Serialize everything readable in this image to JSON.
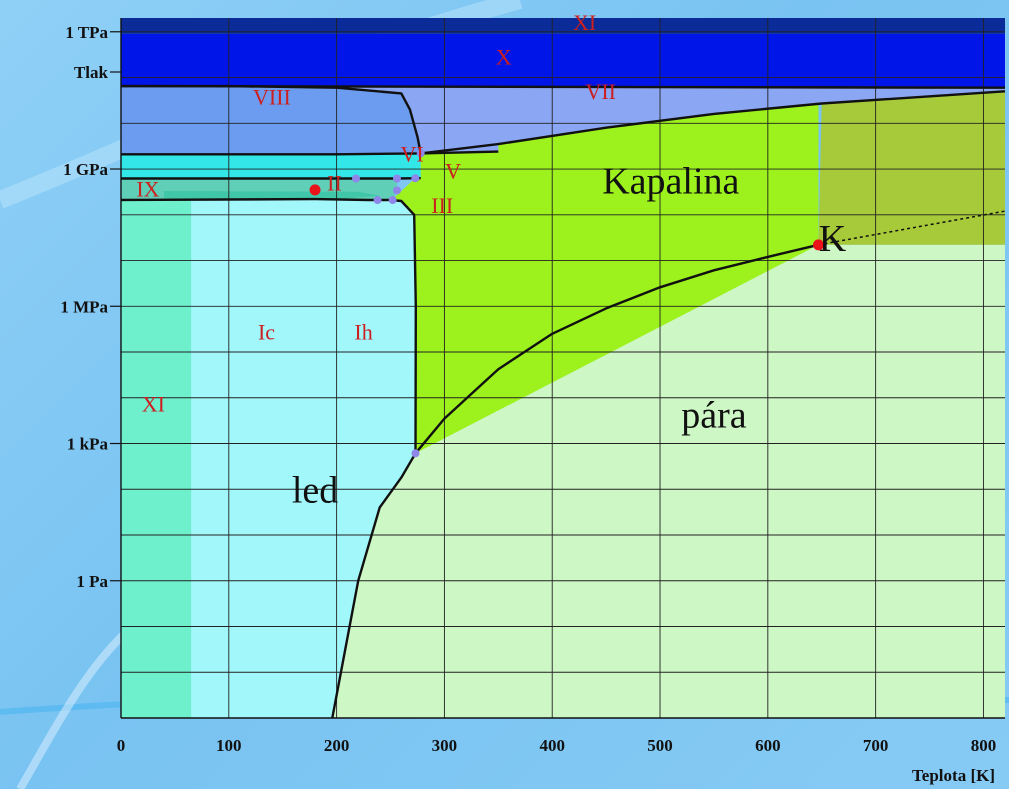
{
  "chart_data": {
    "type": "phase-diagram",
    "xlabel": "Teplota [K]",
    "ylabel": "Tlak",
    "xlim": [
      0,
      820
    ],
    "x_ticks": [
      {
        "value": 0,
        "label": "0"
      },
      {
        "value": 100,
        "label": "100"
      },
      {
        "value": 200,
        "label": "200"
      },
      {
        "value": 300,
        "label": "300"
      },
      {
        "value": 400,
        "label": "400"
      },
      {
        "value": 500,
        "label": "500"
      },
      {
        "value": 600,
        "label": "600"
      },
      {
        "value": 700,
        "label": "700"
      },
      {
        "value": 800,
        "label": "800"
      }
    ],
    "y_scale": "log",
    "ylim_pa": [
      0.001,
      2000000000000.0
    ],
    "y_ticks": [
      {
        "value": 1,
        "label": "1 Pa"
      },
      {
        "value": 1000,
        "label": "1 kPa"
      },
      {
        "value": 1000000,
        "label": "1 MPa"
      },
      {
        "value": 1000000000,
        "label": "1 GPa"
      },
      {
        "value": 1000000000000,
        "label": "1 TPa"
      }
    ],
    "region_labels": [
      {
        "text": "XI",
        "x": 430,
        "p": 1400000000000.0,
        "color": "red"
      },
      {
        "text": "X",
        "x": 355,
        "p": 250000000000.0,
        "color": "red"
      },
      {
        "text": "VIII",
        "x": 140,
        "p": 33000000000.0,
        "color": "red"
      },
      {
        "text": "VII",
        "x": 445,
        "p": 44000000000.0,
        "color": "red"
      },
      {
        "text": "VI",
        "x": 270,
        "p": 1900000000.0,
        "color": "red"
      },
      {
        "text": "V",
        "x": 308,
        "p": 800000000.0,
        "color": "red"
      },
      {
        "text": "II",
        "x": 198,
        "p": 440000000.0,
        "color": "red"
      },
      {
        "text": "IX",
        "x": 25,
        "p": 320000000.0,
        "color": "red"
      },
      {
        "text": "III",
        "x": 298,
        "p": 140000000.0,
        "color": "red"
      },
      {
        "text": "Ic",
        "x": 135,
        "p": 240000.0,
        "color": "red"
      },
      {
        "text": "Ih",
        "x": 225,
        "p": 240000.0,
        "color": "red"
      },
      {
        "text": "XI",
        "x": 30,
        "p": 6500.0,
        "color": "red"
      },
      {
        "text": "Kapalina",
        "x": 510,
        "p": 450000000.0,
        "color": "black"
      },
      {
        "text": "K",
        "x": 660,
        "p": 25000000.0,
        "color": "black"
      },
      {
        "text": "pára",
        "x": 550,
        "p": 3500.0,
        "color": "black"
      },
      {
        "text": "led",
        "x": 180,
        "p": 80,
        "color": "black"
      }
    ],
    "special_points": [
      {
        "name": "critical-point",
        "x": 647,
        "p": 22000000.0
      },
      {
        "name": "triple-point-ii",
        "x": 180,
        "p": 350000000.0
      }
    ],
    "triple_points": [
      {
        "x": 273.16,
        "p": 611
      },
      {
        "x": 218,
        "p": 620000000.0
      },
      {
        "x": 238,
        "p": 210000000.0
      },
      {
        "x": 252,
        "p": 210000000.0
      },
      {
        "x": 256,
        "p": 340000000.0
      },
      {
        "x": 256,
        "p": 620000000.0
      },
      {
        "x": 273,
        "p": 630000000.0
      },
      {
        "x": 278,
        "p": 2200000000.0
      }
    ],
    "boundary_curves": [
      {
        "name": "sublimation",
        "points": [
          [
            196,
            0.001
          ],
          [
            220,
            1
          ],
          [
            240,
            40
          ],
          [
            260,
            180
          ],
          [
            273.16,
            611
          ]
        ]
      },
      {
        "name": "vaporization",
        "points": [
          [
            273.16,
            611
          ],
          [
            300,
            3500
          ],
          [
            350,
            42000
          ],
          [
            400,
            250000.0
          ],
          [
            450,
            900000.0
          ],
          [
            500,
            2600000.0
          ],
          [
            550,
            6100000.0
          ],
          [
            600,
            12000000.0
          ],
          [
            647,
            22000000.0
          ]
        ]
      },
      {
        "name": "supercritical-extension",
        "dashed": true,
        "points": [
          [
            647,
            22000000.0
          ],
          [
            820,
            120000000.0
          ]
        ]
      },
      {
        "name": "melting-ih",
        "points": [
          [
            273.16,
            611
          ],
          [
            273.5,
            1000000.0
          ],
          [
            272,
            100000000.0
          ],
          [
            260,
            200000000.0
          ],
          [
            251,
            210000000.0
          ]
        ]
      },
      {
        "name": "melting-high",
        "points": [
          [
            278,
            2200000000.0
          ],
          [
            350,
            3500000000.0
          ],
          [
            450,
            8000000000.0
          ],
          [
            550,
            16000000000.0
          ],
          [
            650,
            27000000000.0
          ],
          [
            820,
            50000000000.0
          ]
        ]
      },
      {
        "name": "ice-vii-viii",
        "points": [
          [
            0,
            65000000000.0
          ],
          [
            100,
            65000000000.0
          ],
          [
            200,
            60000000000.0
          ],
          [
            260,
            45000000000.0
          ],
          [
            268,
            20000000000.0
          ],
          [
            275,
            5000000000.0
          ],
          [
            278,
            2200000000.0
          ]
        ]
      },
      {
        "name": "ice-vi-upper",
        "points": [
          [
            0,
            2100000000.0
          ],
          [
            100,
            2100000000.0
          ],
          [
            200,
            2100000000.0
          ],
          [
            278,
            2200000000.0
          ],
          [
            350,
            2400000000.0
          ]
        ]
      },
      {
        "name": "ice-vi-lower",
        "points": [
          [
            0,
            620000000.0
          ],
          [
            218,
            620000000.0
          ],
          [
            256,
            620000000.0
          ],
          [
            278,
            630000000.0
          ]
        ]
      },
      {
        "name": "ice-ii-lower",
        "points": [
          [
            0,
            210000000.0
          ],
          [
            180,
            220000000.0
          ],
          [
            230,
            210000000.0
          ],
          [
            252,
            210000000.0
          ]
        ]
      },
      {
        "name": "ice-vii-x",
        "points": [
          [
            0,
            65000000000.0
          ],
          [
            820,
            60000000000.0
          ]
        ]
      }
    ],
    "colors": {
      "vapor": "#cdf7c4",
      "liquid": "#9df11c",
      "supercritical": "#a7ca3a",
      "ice_i": "#a2f7fb",
      "ice_xi_low": "#6ef0cd",
      "ice_ii_ix": "#5fd0b7",
      "ice_ii": "#40c6a9",
      "ice_vi": "#33e7e9",
      "ice_viii": "#6b9cf0",
      "ice_vii": "#8ba6f2",
      "ice_x": "#0015e8",
      "ice_xi_top": "#0a2b98",
      "grid": "#222222",
      "region_label": "#cc1f1f",
      "phase_label": "#111111",
      "boundary": "#111111",
      "critical_point": "#e8141a",
      "triple_point": "#8e86e8"
    }
  }
}
